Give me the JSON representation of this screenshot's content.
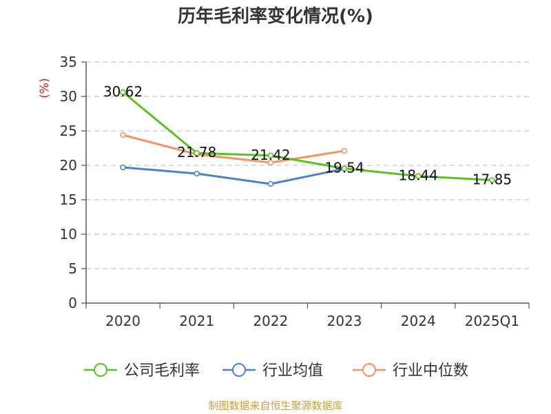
{
  "chart_data": {
    "type": "line",
    "title": "历年毛利率变化情况(%)",
    "ylabel": "(%)",
    "xlabel": "",
    "categories": [
      "2020",
      "2021",
      "2022",
      "2023",
      "2024",
      "2025Q1"
    ],
    "ylim": [
      0,
      35
    ],
    "yticks": [
      0,
      5,
      10,
      15,
      20,
      25,
      30,
      35
    ],
    "grid": true,
    "legend_position": "bottom",
    "series": [
      {
        "name": "公司毛利率",
        "color": "#5ac220",
        "values": [
          30.62,
          21.78,
          21.42,
          19.54,
          18.44,
          17.85
        ],
        "labels": [
          "30.62",
          "21.78",
          "21.42",
          "19.54",
          "18.44",
          "17.85"
        ]
      },
      {
        "name": "行业均值",
        "color": "#4a7fd6",
        "values": [
          19.7,
          18.8,
          17.3,
          19.5,
          null,
          null
        ]
      },
      {
        "name": "行业中位数",
        "color": "#f59262",
        "values": [
          24.4,
          21.6,
          20.4,
          22.1,
          null,
          null
        ]
      }
    ]
  },
  "footer": {
    "source": "制图数据来自恒生聚源数据库"
  }
}
